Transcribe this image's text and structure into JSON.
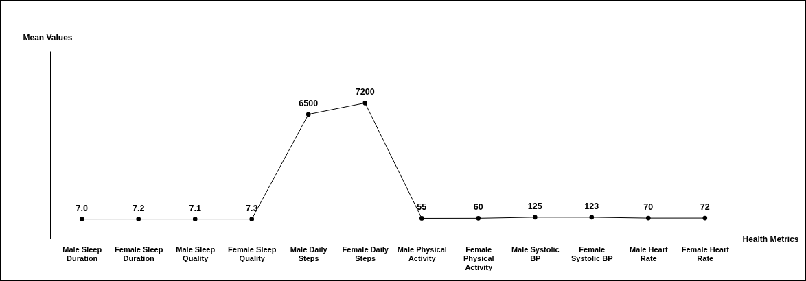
{
  "chart_data": {
    "type": "line",
    "xlabel": "Health Metrics",
    "ylabel": "Mean Values",
    "categories": [
      "Male Sleep Duration",
      "Female Sleep Duration",
      "Male Sleep Quality",
      "Female Sleep Quality",
      "Male Daily Steps",
      "Female Daily Steps",
      "Male Physical Activity",
      "Female Physical Activity",
      "Male Systolic BP",
      "Female Systolic BP",
      "Male Heart Rate",
      "Female Heart Rate"
    ],
    "values": [
      7.0,
      7.2,
      7.1,
      7.3,
      6500,
      7200,
      55,
      60,
      125,
      123,
      70,
      72
    ],
    "value_labels": [
      "7.0",
      "7.2",
      "7.1",
      "7.3",
      "6500",
      "7200",
      "55",
      "60",
      "125",
      "123",
      "70",
      "72"
    ],
    "color": "#000000",
    "ylim": [
      -1200,
      10400
    ],
    "tick_labels": "x",
    "marker": "circle",
    "line_style": "solid"
  }
}
